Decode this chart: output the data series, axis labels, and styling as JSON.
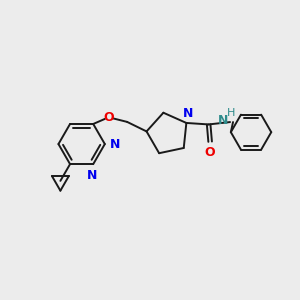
{
  "background_color": "#ececec",
  "bond_color": "#1a1a1a",
  "bond_width": 1.4,
  "nitrogen_color": "#0000ee",
  "oxygen_color": "#ee0000",
  "nh_color": "#2e8b8b",
  "figsize": [
    3.0,
    3.0
  ],
  "dpi": 100,
  "xlim": [
    0,
    10
  ],
  "ylim": [
    0,
    10
  ]
}
